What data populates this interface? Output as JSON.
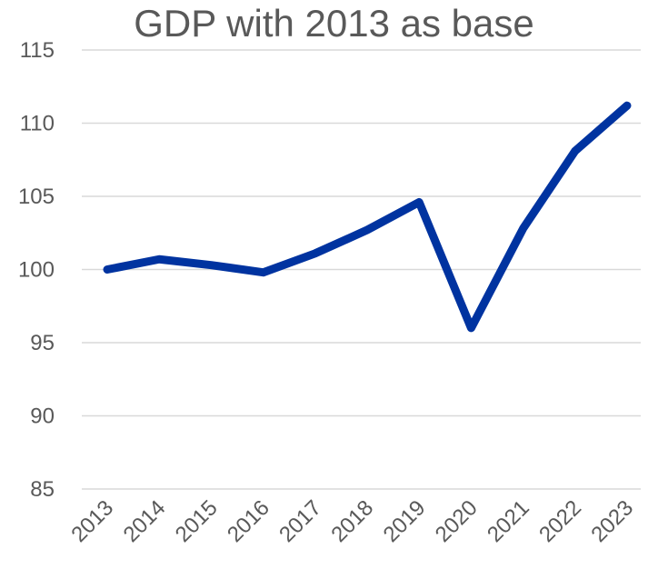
{
  "chart_data": {
    "type": "line",
    "title": "GDP with 2013 as base",
    "xlabel": "",
    "ylabel": "",
    "categories": [
      "2013",
      "2014",
      "2015",
      "2016",
      "2017",
      "2018",
      "2019",
      "2020",
      "2021",
      "2022",
      "2023"
    ],
    "series": [
      {
        "values": [
          100.0,
          100.7,
          100.3,
          99.8,
          101.1,
          102.7,
          104.6,
          96.0,
          102.8,
          108.1,
          111.2
        ]
      }
    ],
    "ylim": [
      85,
      115
    ],
    "yticks": [
      85,
      90,
      95,
      100,
      105,
      110,
      115
    ],
    "grid": true,
    "legend": "none",
    "colors": {
      "line": "#0033a0",
      "grid": "#d9d9d9",
      "text": "#595959"
    }
  }
}
